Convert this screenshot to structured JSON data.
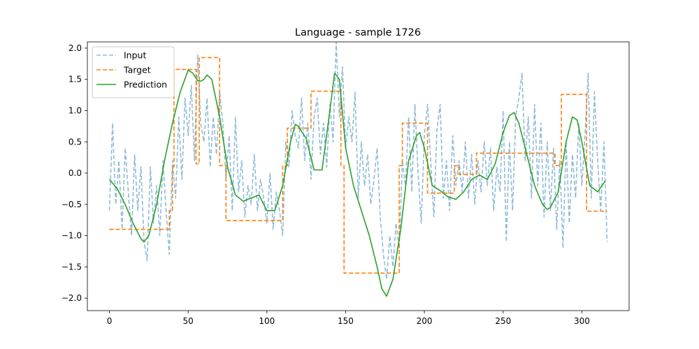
{
  "chart_data": {
    "type": "line",
    "title": "Language - sample 1726",
    "xlabel": "",
    "ylabel": "",
    "xlim": [
      -14,
      330
    ],
    "ylim": [
      -2.2,
      2.1
    ],
    "xticks": [
      0,
      50,
      100,
      150,
      200,
      250,
      300
    ],
    "yticks": [
      -2.0,
      -1.5,
      -1.0,
      -0.5,
      0.0,
      0.5,
      1.0,
      1.5,
      2.0
    ],
    "ytick_labels": [
      "−2.0",
      "−1.5",
      "−1.0",
      "−0.5",
      "0.0",
      "0.5",
      "1.0",
      "1.5",
      "2.0"
    ],
    "grid": false,
    "legend": {
      "placement": "top-left",
      "entries": [
        "Input",
        "Target",
        "Prediction"
      ]
    },
    "series": [
      {
        "name": "Input",
        "color": "#1f77b4",
        "style": "dashed",
        "opacity": 0.5,
        "x": [
          0,
          2,
          4,
          6,
          8,
          10,
          12,
          14,
          16,
          18,
          20,
          22,
          24,
          26,
          28,
          30,
          32,
          34,
          36,
          38,
          40,
          42,
          44,
          46,
          48,
          50,
          52,
          54,
          56,
          58,
          60,
          62,
          64,
          66,
          68,
          70,
          72,
          74,
          76,
          78,
          80,
          82,
          84,
          86,
          88,
          90,
          92,
          94,
          96,
          98,
          100,
          102,
          104,
          106,
          108,
          110,
          112,
          114,
          116,
          118,
          120,
          122,
          124,
          126,
          128,
          130,
          132,
          134,
          136,
          138,
          140,
          142,
          144,
          146,
          148,
          150,
          152,
          154,
          156,
          158,
          160,
          162,
          164,
          166,
          168,
          170,
          172,
          174,
          176,
          178,
          180,
          182,
          184,
          186,
          188,
          190,
          192,
          194,
          196,
          198,
          200,
          202,
          204,
          206,
          208,
          210,
          212,
          214,
          216,
          218,
          220,
          222,
          224,
          226,
          228,
          230,
          232,
          234,
          236,
          238,
          240,
          242,
          244,
          246,
          248,
          250,
          252,
          254,
          256,
          258,
          260,
          262,
          264,
          266,
          268,
          270,
          272,
          274,
          276,
          278,
          280,
          282,
          284,
          286,
          288,
          290,
          292,
          294,
          296,
          298,
          300,
          302,
          304,
          306,
          308,
          310,
          312,
          314,
          316
        ],
        "y": [
          -0.6,
          0.8,
          -0.5,
          0.2,
          -0.9,
          0.4,
          -0.3,
          -1.0,
          0.3,
          -0.6,
          0.1,
          -1.1,
          -1.4,
          0.1,
          -0.8,
          -0.2,
          -1.0,
          0.2,
          -0.6,
          -1.3,
          0.2,
          -0.4,
          0.9,
          -0.1,
          1.2,
          0.6,
          1.4,
          0.2,
          1.9,
          0.8,
          0.5,
          1.2,
          0.1,
          0.9,
          0.3,
          1.3,
          0.8,
          -0.1,
          0.6,
          -0.6,
          0.9,
          -0.3,
          0.2,
          -0.7,
          -0.2,
          -0.5,
          0.3,
          -0.6,
          -0.1,
          -0.4,
          -0.8,
          0.0,
          -0.9,
          -0.3,
          -0.6,
          -1.0,
          0.5,
          0.1,
          1.0,
          0.6,
          0.4,
          1.2,
          0.2,
          0.8,
          -0.1,
          0.9,
          1.2,
          0.3,
          0.8,
          0.1,
          1.1,
          0.5,
          2.1,
          0.9,
          1.7,
          0.4,
          0.9,
          0.5,
          1.3,
          -0.4,
          0.5,
          -0.2,
          0.3,
          -0.5,
          -0.1,
          0.4,
          -0.7,
          -1.3,
          -1.7,
          -1.0,
          -1.5,
          -0.8,
          -1.2,
          0.2,
          -0.2,
          0.9,
          -0.3,
          1.1,
          0.0,
          -0.8,
          0.6,
          1.1,
          0.2,
          -0.7,
          0.7,
          1.1,
          -0.4,
          0.2,
          -0.6,
          0.6,
          -0.2,
          0.2,
          -0.3,
          0.5,
          -0.4,
          0.3,
          -0.5,
          0.2,
          -0.3,
          0.5,
          -0.2,
          0.4,
          -0.6,
          0.1,
          -0.3,
          1.0,
          -1.1,
          0.5,
          -0.6,
          0.9,
          1.2,
          1.6,
          0.2,
          0.9,
          -0.4,
          1.1,
          -0.2,
          0.8,
          -0.7,
          0.5,
          -0.6,
          0.4,
          -0.9,
          0.2,
          -1.2,
          0.5,
          -0.8,
          0.3,
          -0.4,
          0.8,
          -0.2,
          0.6,
          1.6,
          -0.4,
          1.3,
          0.2,
          -0.6,
          0.5,
          -1.1
        ]
      },
      {
        "name": "Target",
        "color": "#ff7f0e",
        "style": "dashed",
        "x": [
          0,
          38,
          38,
          40,
          40,
          41,
          41,
          55,
          55,
          57,
          57,
          70,
          70,
          74,
          74,
          110,
          110,
          113,
          113,
          128,
          128,
          147,
          147,
          149,
          149,
          165,
          165,
          184,
          184,
          186,
          186,
          202,
          202,
          219,
          219,
          222,
          222,
          233,
          233,
          242,
          242,
          283,
          283,
          287,
          287,
          303,
          303,
          316
        ],
        "y": [
          -0.9,
          -0.9,
          -0.6,
          -0.6,
          0.1,
          0.1,
          1.66,
          1.66,
          0.15,
          0.15,
          1.85,
          1.85,
          0.12,
          0.12,
          -0.76,
          -0.76,
          0.12,
          0.12,
          0.72,
          0.72,
          1.31,
          1.31,
          0.12,
          0.12,
          -1.6,
          -1.6,
          -1.6,
          -1.6,
          0.12,
          0.12,
          0.8,
          0.8,
          -0.32,
          -0.32,
          0.12,
          0.12,
          -0.02,
          -0.02,
          0.32,
          0.32,
          0.32,
          0.32,
          0.12,
          0.12,
          1.26,
          1.26,
          -0.61,
          -0.61
        ]
      },
      {
        "name": "Prediction",
        "color": "#2ca02c",
        "style": "solid",
        "x": [
          0,
          5,
          10,
          15,
          20,
          22,
          25,
          30,
          35,
          40,
          45,
          50,
          53,
          56,
          58,
          60,
          62,
          65,
          70,
          75,
          80,
          85,
          90,
          95,
          100,
          105,
          110,
          115,
          118,
          120,
          125,
          130,
          135,
          140,
          143,
          146,
          150,
          155,
          160,
          165,
          170,
          173,
          176,
          180,
          185,
          190,
          195,
          197,
          200,
          205,
          210,
          215,
          220,
          225,
          230,
          235,
          240,
          245,
          250,
          254,
          257,
          260,
          265,
          270,
          275,
          278,
          280,
          285,
          290,
          294,
          297,
          300,
          305,
          310,
          315
        ],
        "y": [
          -0.1,
          -0.25,
          -0.5,
          -0.8,
          -1.05,
          -1.1,
          -1.0,
          -0.5,
          0.2,
          0.8,
          1.3,
          1.65,
          1.6,
          1.48,
          1.47,
          1.5,
          1.57,
          1.5,
          0.9,
          0.1,
          -0.35,
          -0.45,
          -0.4,
          -0.35,
          -0.6,
          -0.6,
          -0.2,
          0.5,
          0.78,
          0.75,
          0.55,
          0.05,
          0.05,
          1.0,
          1.6,
          1.5,
          0.4,
          -0.2,
          -0.6,
          -1.0,
          -1.5,
          -1.85,
          -1.97,
          -1.7,
          -0.9,
          0.2,
          0.6,
          0.65,
          0.4,
          -0.2,
          -0.28,
          -0.38,
          -0.42,
          -0.3,
          -0.1,
          -0.03,
          -0.1,
          0.15,
          0.65,
          0.92,
          0.97,
          0.8,
          0.3,
          -0.2,
          -0.5,
          -0.58,
          -0.55,
          -0.3,
          0.5,
          0.9,
          0.85,
          0.5,
          -0.2,
          -0.3,
          -0.12
        ]
      }
    ]
  }
}
